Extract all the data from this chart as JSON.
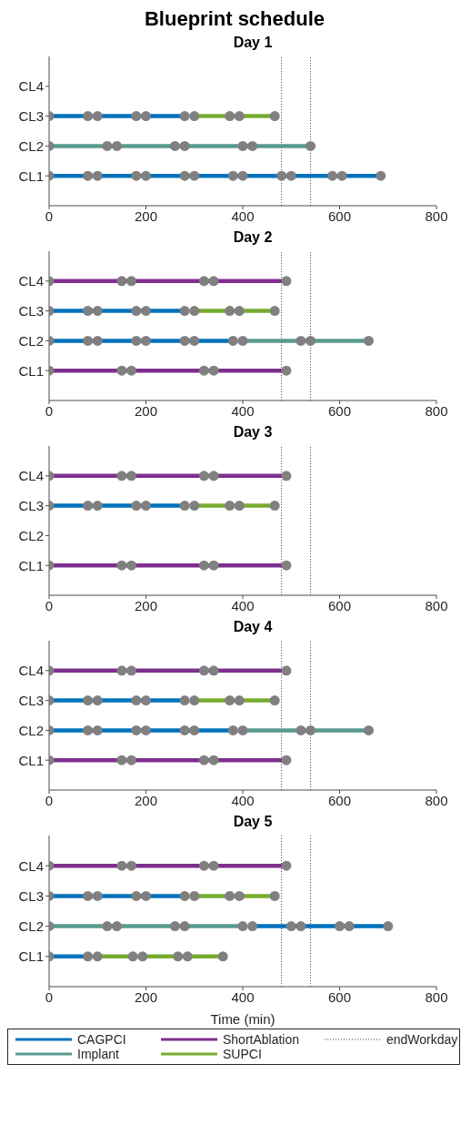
{
  "chart_data": [
    {
      "type": "line",
      "title": "Blueprint schedule",
      "subtitle": "Day 1",
      "orientation": "horizontal",
      "categories": [
        "CL4",
        "CL3",
        "CL2",
        "CL1"
      ],
      "xlim": [
        0,
        800
      ],
      "xticks": [
        0,
        200,
        400,
        600,
        800
      ],
      "ref_lines": [
        {
          "axis": "x",
          "value": 480,
          "color": "#404040",
          "line_style": "dotted"
        },
        {
          "axis": "x",
          "value": 540,
          "color": "#404040",
          "line_style": "dotted"
        }
      ],
      "series": [
        {
          "color": "#0072bd",
          "x": [
            "CL1",
            "CL1",
            "CL1",
            "CL1",
            "CL1",
            "CL1",
            "CL1",
            "CL1",
            "CL1",
            "CL1",
            "CL1",
            "CL1",
            "CL1",
            "CL1",
            null,
            "CL3",
            "CL3",
            "CL3",
            "CL3",
            "CL3",
            "CL3"
          ],
          "values": [
            0,
            80,
            100,
            180,
            200,
            280,
            300,
            380,
            400,
            480,
            500,
            585,
            605,
            685,
            null,
            0,
            80,
            100,
            180,
            200,
            280
          ]
        },
        {
          "color": "#5a9a8f",
          "x": [
            "CL2",
            "CL2",
            "CL2",
            "CL2",
            "CL2",
            "CL2",
            "CL2",
            "CL2"
          ],
          "values": [
            0,
            120,
            140,
            260,
            280,
            400,
            420,
            540
          ]
        },
        {
          "color": "#77ac30",
          "x": [
            "CL3",
            "CL3",
            "CL3",
            "CL3"
          ],
          "values": [
            300,
            373,
            393,
            466
          ]
        },
        {
          "type": "scatter",
          "marker": "circle",
          "color": "#808080",
          "x": [
            "CL1",
            "CL1",
            "CL1",
            "CL1",
            "CL1",
            "CL1",
            "CL1",
            "CL1",
            "CL1",
            "CL1",
            "CL1",
            "CL1",
            "CL1",
            "CL1",
            "CL2",
            "CL2",
            "CL2",
            "CL2",
            "CL2",
            "CL2",
            "CL2",
            "CL2",
            "CL3",
            "CL3",
            "CL3",
            "CL3",
            "CL3",
            "CL3",
            "CL3",
            "CL3",
            "CL3",
            "CL3"
          ],
          "values": [
            0,
            80,
            100,
            180,
            200,
            280,
            300,
            380,
            400,
            480,
            500,
            585,
            605,
            685,
            0,
            120,
            140,
            260,
            280,
            400,
            420,
            540,
            0,
            80,
            100,
            180,
            200,
            280,
            300,
            373,
            393,
            466
          ]
        }
      ]
    },
    {
      "type": "line",
      "title": "Day 2",
      "orientation": "horizontal",
      "categories": [
        "CL4",
        "CL3",
        "CL2",
        "CL1"
      ],
      "xlim": [
        0,
        800
      ],
      "xticks": [
        0,
        200,
        400,
        600,
        800
      ],
      "ref_lines": [
        {
          "axis": "x",
          "value": 480,
          "color": "#404040",
          "line_style": "dotted"
        },
        {
          "axis": "x",
          "value": 540,
          "color": "#404040",
          "line_style": "dotted"
        }
      ],
      "series": [
        {
          "color": "#0072bd",
          "x": [
            "CL3",
            "CL3",
            "CL3",
            "CL3",
            "CL3",
            "CL3",
            null,
            "CL2",
            "CL2",
            "CL2",
            "CL2",
            "CL2",
            "CL2",
            "CL2",
            "CL2"
          ],
          "values": [
            0,
            80,
            100,
            180,
            200,
            280,
            null,
            0,
            80,
            100,
            180,
            200,
            280,
            300,
            380
          ]
        },
        {
          "color": "#5a9a8f",
          "x": [
            "CL2",
            "CL2",
            "CL2",
            "CL2"
          ],
          "values": [
            400,
            520,
            540,
            660
          ]
        },
        {
          "color": "#7e2f8e",
          "x": [
            "CL4",
            "CL4",
            "CL4",
            "CL4",
            "CL4",
            "CL4",
            null,
            "CL1",
            "CL1",
            "CL1",
            "CL1",
            "CL1",
            "CL1"
          ],
          "values": [
            0,
            150,
            170,
            320,
            340,
            490,
            null,
            0,
            150,
            170,
            320,
            340,
            490
          ]
        },
        {
          "color": "#77ac30",
          "x": [
            "CL3",
            "CL3",
            "CL3",
            "CL3"
          ],
          "values": [
            300,
            373,
            393,
            466
          ]
        },
        {
          "type": "scatter",
          "marker": "circle",
          "color": "#808080",
          "x": [
            "CL4",
            "CL4",
            "CL4",
            "CL4",
            "CL4",
            "CL4",
            "CL3",
            "CL3",
            "CL3",
            "CL3",
            "CL3",
            "CL3",
            "CL3",
            "CL3",
            "CL3",
            "CL3",
            "CL2",
            "CL2",
            "CL2",
            "CL2",
            "CL2",
            "CL2",
            "CL2",
            "CL2",
            "CL2",
            "CL2",
            "CL2",
            "CL2",
            "CL1",
            "CL1",
            "CL1",
            "CL1",
            "CL1",
            "CL1"
          ],
          "values": [
            0,
            150,
            170,
            320,
            340,
            490,
            0,
            80,
            100,
            180,
            200,
            280,
            300,
            373,
            393,
            466,
            0,
            80,
            100,
            180,
            200,
            280,
            300,
            380,
            400,
            520,
            540,
            660,
            0,
            150,
            170,
            320,
            340,
            490
          ]
        }
      ]
    },
    {
      "type": "line",
      "title": "Day 3",
      "orientation": "horizontal",
      "categories": [
        "CL4",
        "CL3",
        "CL2",
        "CL1"
      ],
      "xlim": [
        0,
        800
      ],
      "xticks": [
        0,
        200,
        400,
        600,
        800
      ],
      "ref_lines": [
        {
          "axis": "x",
          "value": 480,
          "color": "#404040",
          "line_style": "dotted"
        },
        {
          "axis": "x",
          "value": 540,
          "color": "#404040",
          "line_style": "dotted"
        }
      ],
      "series": [
        {
          "color": "#0072bd",
          "x": [
            "CL3",
            "CL3",
            "CL3",
            "CL3",
            "CL3",
            "CL3"
          ],
          "values": [
            0,
            80,
            100,
            180,
            200,
            280
          ]
        },
        {
          "color": "#7e2f8e",
          "x": [
            "CL4",
            "CL4",
            "CL4",
            "CL4",
            "CL4",
            "CL4",
            null,
            "CL1",
            "CL1",
            "CL1",
            "CL1",
            "CL1",
            "CL1"
          ],
          "values": [
            0,
            150,
            170,
            320,
            340,
            490,
            null,
            0,
            150,
            170,
            320,
            340,
            490
          ]
        },
        {
          "color": "#77ac30",
          "x": [
            "CL3",
            "CL3",
            "CL3",
            "CL3"
          ],
          "values": [
            300,
            373,
            393,
            466
          ]
        },
        {
          "type": "scatter",
          "marker": "circle",
          "color": "#808080",
          "x": [
            "CL4",
            "CL4",
            "CL4",
            "CL4",
            "CL4",
            "CL4",
            "CL3",
            "CL3",
            "CL3",
            "CL3",
            "CL3",
            "CL3",
            "CL3",
            "CL3",
            "CL3",
            "CL3",
            "CL1",
            "CL1",
            "CL1",
            "CL1",
            "CL1",
            "CL1"
          ],
          "values": [
            0,
            150,
            170,
            320,
            340,
            490,
            0,
            80,
            100,
            180,
            200,
            280,
            300,
            373,
            393,
            466,
            0,
            150,
            170,
            320,
            340,
            490
          ]
        }
      ]
    },
    {
      "type": "line",
      "title": "Day 4",
      "orientation": "horizontal",
      "categories": [
        "CL4",
        "CL3",
        "CL2",
        "CL1"
      ],
      "xlim": [
        0,
        800
      ],
      "xticks": [
        0,
        200,
        400,
        600,
        800
      ],
      "ref_lines": [
        {
          "axis": "x",
          "value": 480,
          "color": "#404040",
          "line_style": "dotted"
        },
        {
          "axis": "x",
          "value": 540,
          "color": "#404040",
          "line_style": "dotted"
        }
      ],
      "series": [
        {
          "color": "#0072bd",
          "x": [
            "CL3",
            "CL3",
            "CL3",
            "CL3",
            "CL3",
            "CL3",
            null,
            "CL2",
            "CL2",
            "CL2",
            "CL2",
            "CL2",
            "CL2",
            "CL2",
            "CL2"
          ],
          "values": [
            0,
            80,
            100,
            180,
            200,
            280,
            null,
            0,
            80,
            100,
            180,
            200,
            280,
            300,
            380
          ]
        },
        {
          "color": "#5a9a8f",
          "x": [
            "CL2",
            "CL2",
            "CL2",
            "CL2"
          ],
          "values": [
            400,
            520,
            540,
            660
          ]
        },
        {
          "color": "#7e2f8e",
          "x": [
            "CL4",
            "CL4",
            "CL4",
            "CL4",
            "CL4",
            "CL4",
            null,
            "CL1",
            "CL1",
            "CL1",
            "CL1",
            "CL1",
            "CL1"
          ],
          "values": [
            0,
            150,
            170,
            320,
            340,
            490,
            null,
            0,
            150,
            170,
            320,
            340,
            490
          ]
        },
        {
          "color": "#77ac30",
          "x": [
            "CL3",
            "CL3",
            "CL3",
            "CL3"
          ],
          "values": [
            300,
            373,
            393,
            466
          ]
        },
        {
          "type": "scatter",
          "marker": "circle",
          "color": "#808080",
          "x": [
            "CL4",
            "CL4",
            "CL4",
            "CL4",
            "CL4",
            "CL4",
            "CL3",
            "CL3",
            "CL3",
            "CL3",
            "CL3",
            "CL3",
            "CL3",
            "CL3",
            "CL3",
            "CL3",
            "CL2",
            "CL2",
            "CL2",
            "CL2",
            "CL2",
            "CL2",
            "CL2",
            "CL2",
            "CL2",
            "CL2",
            "CL2",
            "CL2",
            "CL1",
            "CL1",
            "CL1",
            "CL1",
            "CL1",
            "CL1"
          ],
          "values": [
            0,
            150,
            170,
            320,
            340,
            490,
            0,
            80,
            100,
            180,
            200,
            280,
            300,
            373,
            393,
            466,
            0,
            80,
            100,
            180,
            200,
            280,
            300,
            380,
            400,
            520,
            540,
            660,
            0,
            150,
            170,
            320,
            340,
            490
          ]
        }
      ]
    },
    {
      "type": "line",
      "title": "Day 5",
      "xlabel": "Time (min)",
      "legend": "bottom",
      "orientation": "horizontal",
      "categories": [
        "CL4",
        "CL3",
        "CL2",
        "CL1"
      ],
      "xlim": [
        0,
        800
      ],
      "xticks": [
        0,
        200,
        400,
        600,
        800
      ],
      "ref_lines": [
        {
          "axis": "x",
          "value": 480,
          "label": "endWorkday",
          "color": "#404040",
          "line_style": "dotted"
        },
        {
          "axis": "x",
          "value": 540,
          "color": "#404040",
          "line_style": "dotted"
        }
      ],
      "series": [
        {
          "name": "CAGPCI",
          "color": "#0072bd",
          "x": [
            "CL3",
            "CL3",
            "CL3",
            "CL3",
            "CL3",
            "CL3",
            null,
            "CL2",
            "CL2",
            "CL2",
            "CL2",
            "CL2",
            "CL2",
            null,
            "CL1",
            "CL1"
          ],
          "values": [
            0,
            80,
            100,
            180,
            200,
            280,
            null,
            420,
            500,
            520,
            600,
            620,
            700,
            null,
            0,
            80
          ]
        },
        {
          "name": "Implant",
          "color": "#5a9a8f",
          "x": [
            "CL2",
            "CL2",
            "CL2",
            "CL2",
            "CL2",
            "CL2"
          ],
          "values": [
            0,
            120,
            140,
            260,
            280,
            400
          ]
        },
        {
          "name": "ShortAblation",
          "color": "#7e2f8e",
          "x": [
            "CL4",
            "CL4",
            "CL4",
            "CL4",
            "CL4",
            "CL4"
          ],
          "values": [
            0,
            150,
            170,
            320,
            340,
            490
          ]
        },
        {
          "name": "SUPCI",
          "color": "#77ac30",
          "x": [
            "CL3",
            "CL3",
            "CL3",
            "CL3",
            null,
            "CL1",
            "CL1",
            "CL1",
            "CL1",
            "CL1",
            "CL1"
          ],
          "values": [
            300,
            373,
            393,
            466,
            null,
            100,
            173,
            193,
            266,
            286,
            359
          ]
        },
        {
          "type": "scatter",
          "marker": "circle",
          "color": "#808080",
          "x": [
            "CL4",
            "CL4",
            "CL4",
            "CL4",
            "CL4",
            "CL4",
            "CL3",
            "CL3",
            "CL3",
            "CL3",
            "CL3",
            "CL3",
            "CL3",
            "CL3",
            "CL3",
            "CL3",
            "CL2",
            "CL2",
            "CL2",
            "CL2",
            "CL2",
            "CL2",
            "CL2",
            "CL2",
            "CL2",
            "CL2",
            "CL2",
            "CL2",
            "CL1",
            "CL1",
            "CL1",
            "CL1",
            "CL1",
            "CL1",
            "CL1",
            "CL1"
          ],
          "values": [
            0,
            150,
            170,
            320,
            340,
            490,
            0,
            80,
            100,
            180,
            200,
            280,
            300,
            373,
            393,
            466,
            0,
            120,
            140,
            260,
            280,
            400,
            420,
            500,
            520,
            600,
            620,
            700,
            0,
            80,
            100,
            173,
            193,
            266,
            286,
            359
          ]
        }
      ]
    }
  ]
}
